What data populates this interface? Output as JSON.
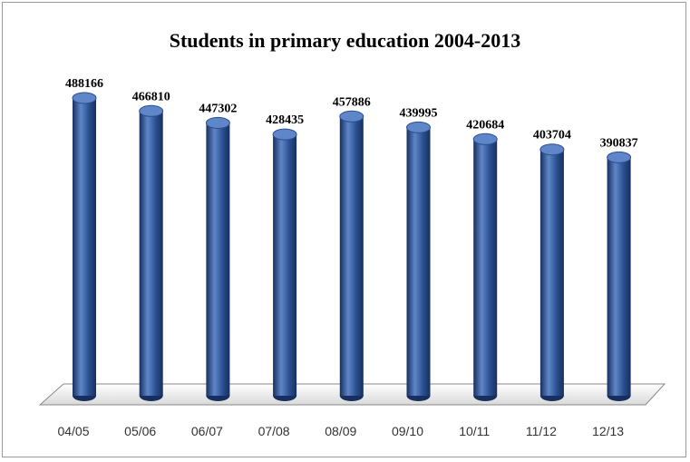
{
  "chart_data": {
    "type": "bar",
    "title": "Students in primary education 2004-2013",
    "categories": [
      "04/05",
      "05/06",
      "06/07",
      "07/08",
      "08/09",
      "09/10",
      "10/11",
      "11/12",
      "12/13"
    ],
    "values": [
      488166,
      466810,
      447302,
      428435,
      457886,
      439995,
      420684,
      403704,
      390837
    ],
    "data_labels": [
      "488166",
      "466810",
      "447302",
      "428435",
      "457886",
      "439995",
      "420684",
      "403704",
      "390837"
    ],
    "xlabel": "",
    "ylabel": "",
    "ylim": [
      0,
      500000
    ],
    "grid": false,
    "legend": "none",
    "bar_color": "#2a4f8f",
    "bar_highlight": "#5f86c8",
    "bar_shadow": "#172f5e"
  }
}
